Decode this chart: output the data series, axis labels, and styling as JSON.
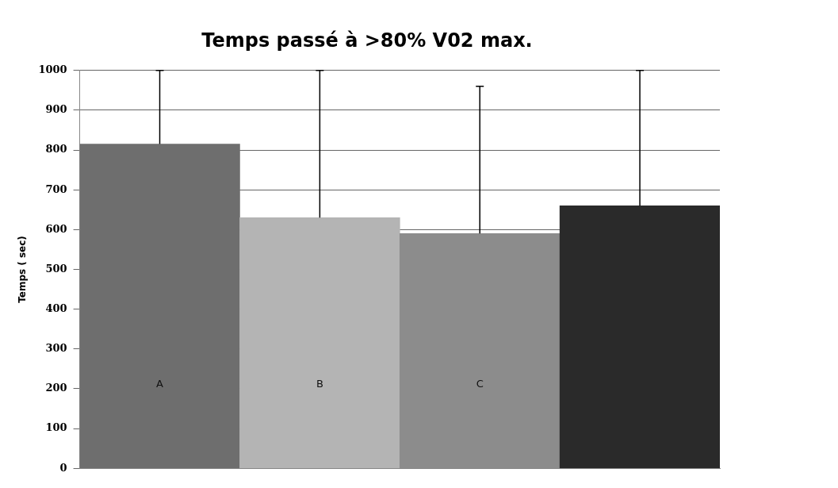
{
  "chart_data": {
    "type": "bar",
    "title": "Temps passé à >80% V02 max.",
    "ylabel": "Temps ( sec)",
    "categories": [
      "A",
      "B",
      "C",
      null
    ],
    "values": [
      815,
      630,
      590,
      660
    ],
    "colors": [
      "#6e6e6e",
      "#b4b4b4",
      "#8c8c8c",
      "#2a2a2a"
    ],
    "errors": [
      [
        815,
        1000
      ],
      [
        630,
        1000
      ],
      [
        590,
        960
      ],
      [
        660,
        1000
      ]
    ],
    "ylim": [
      0,
      1000
    ],
    "yticks": [
      0,
      100,
      200,
      300,
      400,
      500,
      600,
      700,
      800,
      900,
      1000
    ],
    "grid": "y",
    "legend": false
  }
}
